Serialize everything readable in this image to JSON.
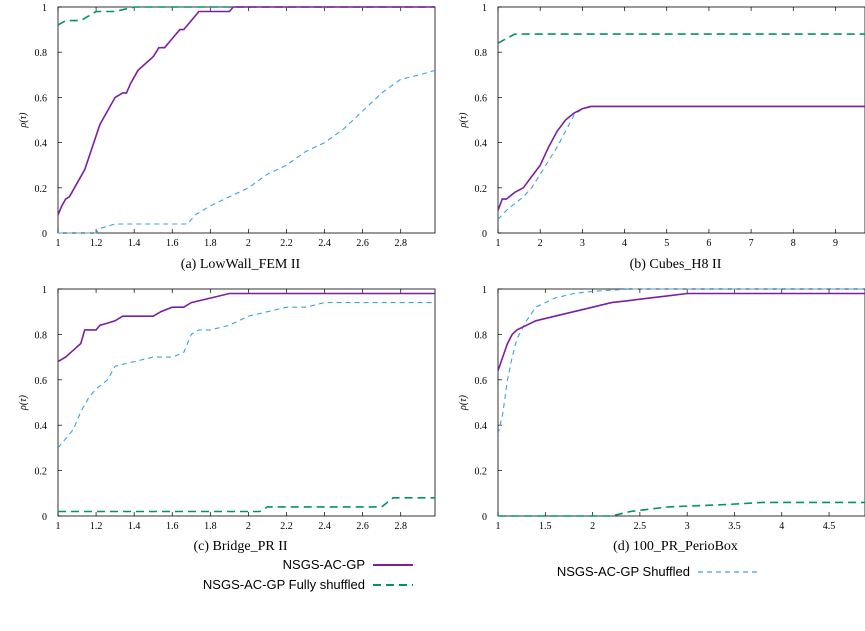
{
  "colors": {
    "gp": "#7b1fa2",
    "full": "#00936b",
    "shuf": "#3ba3e0"
  },
  "legend": {
    "gp": "NSGS-AC-GP",
    "full": "NSGS-AC-GP Fully shuffled",
    "shuf": "NSGS-AC-GP Shuffled"
  },
  "chart_data": [
    {
      "type": "line",
      "title": "(a) LowWall_FEM II",
      "ylabel": "ρ(τ)",
      "xlim": [
        1,
        2.98
      ],
      "ylim": [
        0,
        1
      ],
      "xticks": [
        1,
        1.2,
        1.4,
        1.6,
        1.8,
        2,
        2.2,
        2.4,
        2.6,
        2.8
      ],
      "xtick_labels": [
        "1",
        "1.2",
        "1.4",
        "1.6",
        "1.8",
        "2",
        "2.2",
        "2.4",
        "2.6",
        "2.8"
      ],
      "yticks": [
        0,
        0.2,
        0.4,
        0.6,
        0.8,
        1
      ],
      "ytick_labels": [
        "0",
        "0.2",
        "0.4",
        "0.6",
        "0.8",
        "1"
      ],
      "series": [
        {
          "key": "gp",
          "x": [
            1,
            1.02,
            1.04,
            1.06,
            1.1,
            1.14,
            1.18,
            1.22,
            1.26,
            1.3,
            1.34,
            1.36,
            1.38,
            1.42,
            1.46,
            1.5,
            1.53,
            1.56,
            1.6,
            1.64,
            1.66,
            1.7,
            1.74,
            1.76,
            1.78,
            1.9,
            1.92,
            2.98
          ],
          "y": [
            0.08,
            0.12,
            0.15,
            0.16,
            0.22,
            0.28,
            0.38,
            0.48,
            0.54,
            0.6,
            0.62,
            0.62,
            0.66,
            0.72,
            0.75,
            0.78,
            0.82,
            0.82,
            0.86,
            0.9,
            0.9,
            0.94,
            0.98,
            0.98,
            0.98,
            0.98,
            1.0,
            1.0
          ]
        },
        {
          "key": "full",
          "x": [
            1,
            1.04,
            1.08,
            1.12,
            1.2,
            1.3,
            1.4,
            1.8,
            2.98
          ],
          "y": [
            0.92,
            0.94,
            0.94,
            0.94,
            0.98,
            0.98,
            1.0,
            1.0,
            1.0
          ]
        },
        {
          "key": "shuf",
          "x": [
            1,
            1.1,
            1.2,
            1.22,
            1.3,
            1.68,
            1.72,
            1.8,
            1.9,
            2.0,
            2.1,
            2.2,
            2.3,
            2.4,
            2.5,
            2.6,
            2.7,
            2.8,
            2.9,
            2.98
          ],
          "y": [
            0,
            0,
            0,
            0.02,
            0.04,
            0.04,
            0.08,
            0.12,
            0.16,
            0.2,
            0.26,
            0.3,
            0.36,
            0.4,
            0.46,
            0.54,
            0.62,
            0.68,
            0.7,
            0.72
          ]
        }
      ]
    },
    {
      "type": "line",
      "title": "(b) Cubes_H8 II",
      "ylabel": "ρ(τ)",
      "xlim": [
        1,
        9.7
      ],
      "ylim": [
        0,
        1
      ],
      "xticks": [
        1,
        2,
        3,
        4,
        5,
        6,
        7,
        8,
        9
      ],
      "xtick_labels": [
        "1",
        "2",
        "3",
        "4",
        "5",
        "6",
        "7",
        "8",
        "9"
      ],
      "yticks": [
        0,
        0.2,
        0.4,
        0.6,
        0.8,
        1
      ],
      "ytick_labels": [
        "0",
        "0.2",
        "0.4",
        "0.6",
        "0.8",
        "1"
      ],
      "series": [
        {
          "key": "gp",
          "x": [
            1,
            1.1,
            1.2,
            1.4,
            1.6,
            1.8,
            2.0,
            2.2,
            2.4,
            2.6,
            2.8,
            3.0,
            3.2,
            3.5,
            4.0,
            9.7
          ],
          "y": [
            0.1,
            0.15,
            0.15,
            0.18,
            0.2,
            0.25,
            0.3,
            0.38,
            0.45,
            0.5,
            0.53,
            0.55,
            0.56,
            0.56,
            0.56,
            0.56
          ]
        },
        {
          "key": "full",
          "x": [
            1,
            1.2,
            1.4,
            2.0,
            9.7
          ],
          "y": [
            0.84,
            0.86,
            0.88,
            0.88,
            0.88
          ]
        },
        {
          "key": "shuf",
          "x": [
            1,
            1.2,
            1.4,
            1.6,
            1.8,
            2.0,
            2.2,
            2.4,
            2.6,
            2.8,
            3.0,
            3.3,
            4.0,
            9.7
          ],
          "y": [
            0.06,
            0.1,
            0.13,
            0.16,
            0.2,
            0.26,
            0.32,
            0.38,
            0.45,
            0.52,
            0.55,
            0.56,
            0.56,
            0.56
          ]
        }
      ]
    },
    {
      "type": "line",
      "title": "(c) Bridge_PR II",
      "ylabel": "ρ(τ)",
      "xlim": [
        1,
        2.98
      ],
      "ylim": [
        0,
        1
      ],
      "xticks": [
        1,
        1.2,
        1.4,
        1.6,
        1.8,
        2,
        2.2,
        2.4,
        2.6,
        2.8
      ],
      "xtick_labels": [
        "1",
        "1.2",
        "1.4",
        "1.6",
        "1.8",
        "2",
        "2.2",
        "2.4",
        "2.6",
        "2.8"
      ],
      "yticks": [
        0,
        0.2,
        0.4,
        0.6,
        0.8,
        1
      ],
      "ytick_labels": [
        "0",
        "0.2",
        "0.4",
        "0.6",
        "0.8",
        "1"
      ],
      "series": [
        {
          "key": "gp",
          "x": [
            1,
            1.04,
            1.08,
            1.12,
            1.14,
            1.2,
            1.22,
            1.26,
            1.3,
            1.34,
            1.4,
            1.5,
            1.54,
            1.6,
            1.66,
            1.7,
            1.8,
            1.9,
            2.98
          ],
          "y": [
            0.68,
            0.7,
            0.73,
            0.76,
            0.82,
            0.82,
            0.84,
            0.85,
            0.86,
            0.88,
            0.88,
            0.88,
            0.9,
            0.92,
            0.92,
            0.94,
            0.96,
            0.98,
            0.98
          ]
        },
        {
          "key": "full",
          "x": [
            1,
            1.8,
            2.06,
            2.1,
            2.7,
            2.76,
            2.98
          ],
          "y": [
            0.02,
            0.02,
            0.02,
            0.04,
            0.04,
            0.08,
            0.08
          ]
        },
        {
          "key": "shuf",
          "x": [
            1,
            1.04,
            1.08,
            1.12,
            1.16,
            1.2,
            1.26,
            1.3,
            1.4,
            1.5,
            1.6,
            1.66,
            1.7,
            1.74,
            1.8,
            1.9,
            2.0,
            2.1,
            2.2,
            2.3,
            2.4,
            2.98
          ],
          "y": [
            0.3,
            0.34,
            0.38,
            0.46,
            0.52,
            0.56,
            0.6,
            0.66,
            0.68,
            0.7,
            0.7,
            0.72,
            0.8,
            0.82,
            0.82,
            0.84,
            0.88,
            0.9,
            0.92,
            0.92,
            0.94,
            0.94
          ]
        }
      ]
    },
    {
      "type": "line",
      "title": "(d) 100_PR_PerioBox",
      "ylabel": "ρ(τ)",
      "xlim": [
        1,
        4.88
      ],
      "ylim": [
        0,
        1
      ],
      "xticks": [
        1,
        1.5,
        2,
        2.5,
        3,
        3.5,
        4,
        4.5
      ],
      "xtick_labels": [
        "1",
        "1.5",
        "2",
        "2.5",
        "3",
        "3.5",
        "4",
        "4.5"
      ],
      "yticks": [
        0,
        0.2,
        0.4,
        0.6,
        0.8,
        1
      ],
      "ytick_labels": [
        "0",
        "0.2",
        "0.4",
        "0.6",
        "0.8",
        "1"
      ],
      "series": [
        {
          "key": "gp",
          "x": [
            1,
            1.05,
            1.1,
            1.15,
            1.2,
            1.3,
            1.4,
            1.6,
            1.8,
            2.0,
            2.2,
            2.4,
            2.6,
            2.8,
            3.0,
            4.88
          ],
          "y": [
            0.64,
            0.7,
            0.76,
            0.8,
            0.82,
            0.84,
            0.86,
            0.88,
            0.9,
            0.92,
            0.94,
            0.95,
            0.96,
            0.97,
            0.98,
            0.98
          ]
        },
        {
          "key": "full",
          "x": [
            1,
            2.2,
            2.4,
            2.8,
            3.4,
            3.8,
            4.2,
            4.88
          ],
          "y": [
            0,
            0,
            0.02,
            0.04,
            0.05,
            0.06,
            0.06,
            0.06
          ]
        },
        {
          "key": "shuf",
          "x": [
            1,
            1.05,
            1.1,
            1.15,
            1.2,
            1.3,
            1.4,
            1.6,
            1.8,
            2.0,
            2.4,
            4.88
          ],
          "y": [
            0.36,
            0.45,
            0.6,
            0.7,
            0.78,
            0.86,
            0.92,
            0.96,
            0.98,
            0.99,
            1.0,
            1.0
          ]
        }
      ]
    }
  ]
}
